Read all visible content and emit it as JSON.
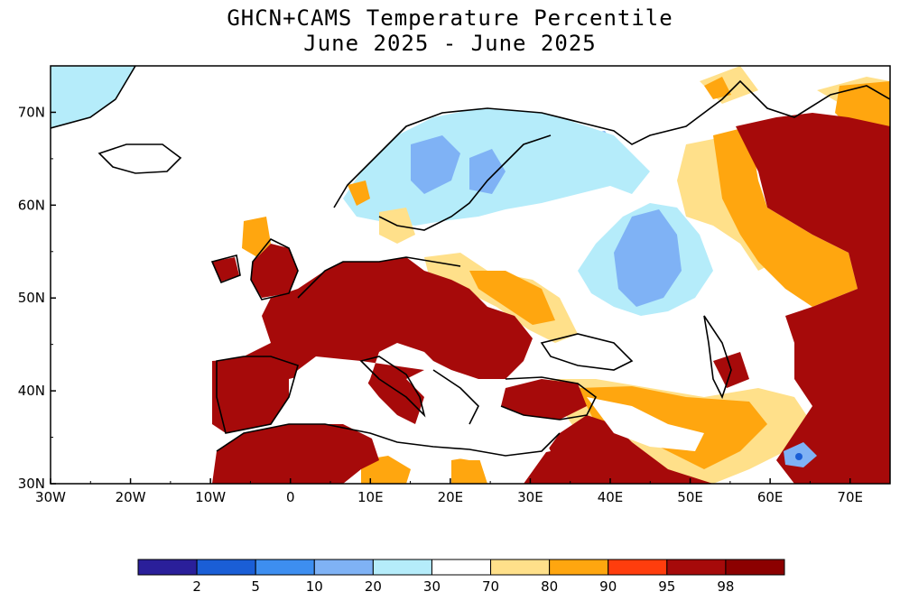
{
  "title": {
    "line1": "GHCN+CAMS Temperature Percentile",
    "line2": "June 2025 - June 2025"
  },
  "map": {
    "region": "Europe",
    "lon_range": [
      -30,
      75
    ],
    "lat_range": [
      30,
      75
    ],
    "x_ticks": [
      "30W",
      "20W",
      "10W",
      "0",
      "10E",
      "20E",
      "30E",
      "40E",
      "50E",
      "60E",
      "70E"
    ],
    "y_ticks": [
      "30N",
      "40N",
      "50N",
      "60N",
      "70N"
    ]
  },
  "colorbar": {
    "colors": [
      "#2a1f9a",
      "#1a5ed6",
      "#3d8ef0",
      "#7fb2f5",
      "#b5ecfa",
      "#ffffff",
      "#ffe08a",
      "#ffa60f",
      "#ff3d0d",
      "#a60a0a",
      "#8c0000"
    ],
    "labels": [
      "2",
      "5",
      "10",
      "20",
      "30",
      "70",
      "80",
      "90",
      "95",
      "98"
    ]
  }
}
